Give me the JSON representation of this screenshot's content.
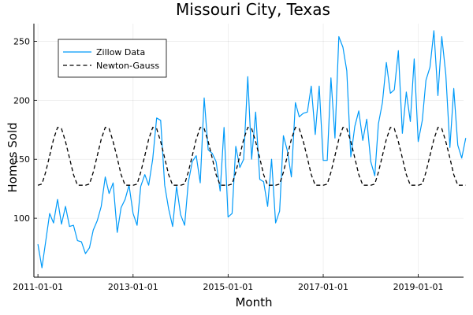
{
  "chart_data": {
    "type": "line",
    "title": "Missouri City, Texas",
    "xlabel": "Month",
    "ylabel": "Homes Sold",
    "xlim": [
      "2010-12-01",
      "2019-12-15"
    ],
    "ylim": [
      50,
      265
    ],
    "x_ticks": [
      "2011-01-01",
      "2013-01-01",
      "2015-01-01",
      "2017-01-01",
      "2019-01-01"
    ],
    "y_ticks": [
      100,
      150,
      200,
      250
    ],
    "grid": true,
    "legend_position": "top-left",
    "series": [
      {
        "name": "Zillow Data",
        "style": "solid",
        "color": "#009af9",
        "start": "2011-01-01",
        "frequency": "monthly",
        "values": [
          78,
          58,
          80,
          104,
          96,
          116,
          95,
          110,
          93,
          94,
          81,
          80,
          70,
          75,
          90,
          98,
          110,
          135,
          121,
          130,
          88,
          109,
          116,
          128,
          104,
          94,
          127,
          137,
          128,
          150,
          185,
          183,
          128,
          108,
          93,
          127,
          103,
          94,
          130,
          148,
          153,
          130,
          202,
          158,
          155,
          148,
          123,
          177,
          101,
          104,
          161,
          143,
          150,
          220,
          150,
          190,
          133,
          131,
          110,
          150,
          96,
          106,
          170,
          157,
          135,
          198,
          186,
          189,
          190,
          212,
          171,
          212,
          149,
          149,
          219,
          168,
          254,
          245,
          225,
          152,
          178,
          191,
          166,
          184,
          148,
          136,
          180,
          198,
          232,
          206,
          209,
          242,
          172,
          207,
          182,
          235,
          165,
          183,
          217,
          228,
          259,
          204,
          254,
          222,
          160,
          210,
          162,
          151,
          168
        ]
      },
      {
        "name": "Newton-Gauss",
        "style": "dashed",
        "color": "#000000",
        "start": "2011-01-01",
        "frequency": "monthly",
        "model": "sinusoidal, mean 152, amplitude 25, period 12 months, peak near June",
        "values": [
          128,
          129,
          139,
          153,
          167,
          177,
          176,
          165,
          151,
          137,
          128,
          128,
          128,
          129,
          139,
          153,
          167,
          177,
          176,
          165,
          151,
          137,
          128,
          128,
          128,
          129,
          139,
          153,
          167,
          177,
          176,
          165,
          151,
          137,
          128,
          128,
          128,
          129,
          139,
          153,
          167,
          177,
          176,
          165,
          151,
          137,
          128,
          128,
          128,
          129,
          139,
          153,
          167,
          177,
          176,
          165,
          151,
          137,
          128,
          128,
          128,
          129,
          139,
          153,
          167,
          177,
          176,
          165,
          151,
          137,
          128,
          128,
          128,
          129,
          139,
          153,
          167,
          177,
          176,
          165,
          151,
          137,
          128,
          128,
          128,
          129,
          139,
          153,
          167,
          177,
          176,
          165,
          151,
          137,
          128,
          128,
          128,
          129,
          139,
          153,
          167,
          177,
          176,
          165,
          151,
          137,
          128,
          128,
          128
        ]
      }
    ]
  }
}
